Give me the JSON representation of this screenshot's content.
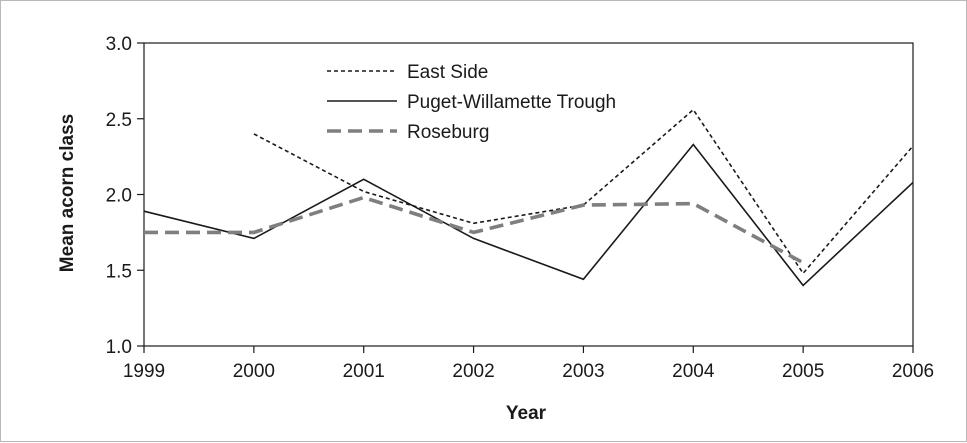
{
  "chart_data": {
    "type": "line",
    "title": "",
    "xlabel": "Year",
    "ylabel": "Mean acorn class",
    "x": [
      1999,
      2000,
      2001,
      2002,
      2003,
      2004,
      2005,
      2006
    ],
    "x_tick_labels": [
      "1999",
      "2000",
      "2001",
      "2002",
      "2003",
      "2004",
      "2005",
      "2006"
    ],
    "y_tick_labels": [
      "1.0",
      "1.5",
      "2.0",
      "2.5",
      "3.0"
    ],
    "y_ticks": [
      1.0,
      1.5,
      2.0,
      2.5,
      3.0
    ],
    "xlim": [
      1999,
      2006
    ],
    "ylim": [
      1.0,
      3.0
    ],
    "grid": false,
    "legend_position": "top-center",
    "series": [
      {
        "name": "East Side",
        "style": "dotted",
        "color": "#1a1a1a",
        "values": [
          null,
          2.4,
          2.02,
          1.81,
          1.93,
          2.56,
          1.48,
          2.32
        ]
      },
      {
        "name": "Puget-Willamette Trough",
        "style": "solid",
        "color": "#1a1a1a",
        "values": [
          1.89,
          1.71,
          2.1,
          1.71,
          1.44,
          2.33,
          1.4,
          2.08
        ]
      },
      {
        "name": "Roseburg",
        "style": "dashed",
        "color": "#7f7f7f",
        "values": [
          1.75,
          1.75,
          1.98,
          1.75,
          1.93,
          1.94,
          1.55,
          null
        ]
      }
    ]
  }
}
